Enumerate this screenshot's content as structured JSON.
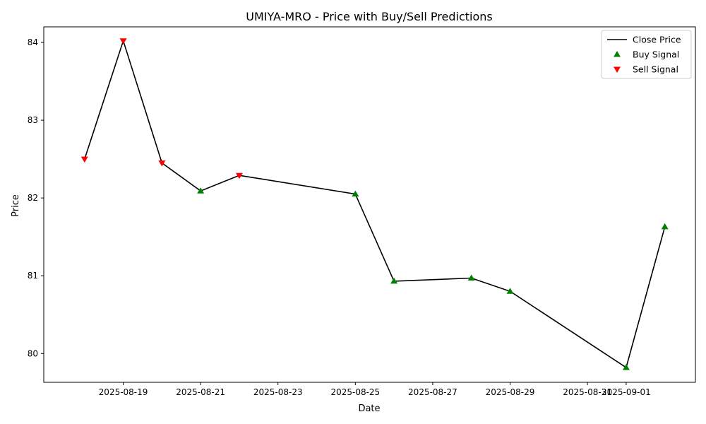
{
  "chart_data": {
    "type": "line",
    "title": "UMIYA-MRO - Price with Buy/Sell Predictions",
    "xlabel": "Date",
    "ylabel": "Price",
    "x_range": [
      "2025-08-16T22:42:00",
      "2025-09-02T18:58:00"
    ],
    "ylim": [
      79.63,
      84.2
    ],
    "x_ticks": [
      "2025-08-19",
      "2025-08-21",
      "2025-08-23",
      "2025-08-25",
      "2025-08-27",
      "2025-08-29",
      "2025-08-31",
      "2025-09-01"
    ],
    "y_ticks": [
      80,
      81,
      82,
      83,
      84
    ],
    "grid": false,
    "legend_position": "upper right",
    "series": [
      {
        "name": "Close Price",
        "kind": "line",
        "color": "#000000",
        "points": [
          {
            "x": "2025-08-18",
            "y": 82.5
          },
          {
            "x": "2025-08-19",
            "y": 84.02
          },
          {
            "x": "2025-08-20",
            "y": 82.45
          },
          {
            "x": "2025-08-21",
            "y": 82.09
          },
          {
            "x": "2025-08-22",
            "y": 82.29
          },
          {
            "x": "2025-08-25",
            "y": 82.05
          },
          {
            "x": "2025-08-26",
            "y": 80.93
          },
          {
            "x": "2025-08-28",
            "y": 80.97
          },
          {
            "x": "2025-08-29",
            "y": 80.8
          },
          {
            "x": "2025-09-01",
            "y": 79.82
          },
          {
            "x": "2025-09-02",
            "y": 81.63
          }
        ]
      },
      {
        "name": "Buy Signal",
        "kind": "scatter",
        "marker": "triangle-up",
        "color": "#008000",
        "points": [
          {
            "x": "2025-08-21",
            "y": 82.09
          },
          {
            "x": "2025-08-25",
            "y": 82.05
          },
          {
            "x": "2025-08-26",
            "y": 80.93
          },
          {
            "x": "2025-08-28",
            "y": 80.97
          },
          {
            "x": "2025-08-29",
            "y": 80.8
          },
          {
            "x": "2025-09-01",
            "y": 79.82
          },
          {
            "x": "2025-09-02",
            "y": 81.63
          }
        ]
      },
      {
        "name": "Sell Signal",
        "kind": "scatter",
        "marker": "triangle-down",
        "color": "#ff0000",
        "points": [
          {
            "x": "2025-08-18",
            "y": 82.5
          },
          {
            "x": "2025-08-19",
            "y": 84.02
          },
          {
            "x": "2025-08-20",
            "y": 82.45
          },
          {
            "x": "2025-08-22",
            "y": 82.29
          }
        ]
      }
    ]
  }
}
